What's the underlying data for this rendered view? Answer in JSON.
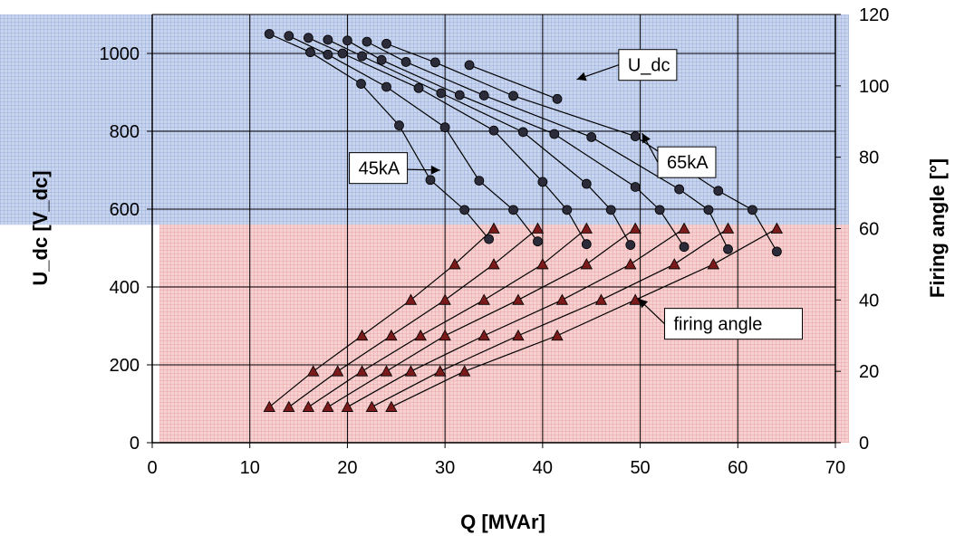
{
  "chart_data": {
    "type": "line",
    "x_axis": {
      "label": "Q [MVAr]",
      "ticks": [
        "0",
        "10",
        "20",
        "30",
        "40",
        "50",
        "60",
        "70"
      ],
      "range": [
        0,
        70
      ]
    },
    "y_axis_left": {
      "label": "U_dc [V_dc]",
      "ticks": [
        "0",
        "200",
        "400",
        "600",
        "800",
        "1000"
      ],
      "range": [
        0,
        1100
      ]
    },
    "y_axis_right": {
      "label": "Firing angle [°]",
      "ticks": [
        "0",
        "20",
        "40",
        "60",
        "80",
        "100",
        "120"
      ],
      "range": [
        0,
        120
      ]
    },
    "grid": true,
    "regions": [
      {
        "name": "upper",
        "color": "#b3c4e3",
        "y_from": 560,
        "y_to": 1100,
        "axis": "left"
      },
      {
        "name": "lower",
        "color": "#f2b9b9",
        "y_from": 0,
        "y_to": 560,
        "axis": "left"
      }
    ],
    "udc_series": [
      {
        "points": [
          [
            12.0,
            1050
          ],
          [
            16.2,
            1003
          ],
          [
            21.4,
            922
          ],
          [
            25.3,
            815
          ],
          [
            28.5,
            675
          ],
          [
            32.0,
            598
          ],
          [
            34.5,
            523
          ]
        ]
      },
      {
        "points": [
          [
            14.0,
            1045
          ],
          [
            18.0,
            997
          ],
          [
            24.0,
            914
          ],
          [
            30.0,
            810
          ],
          [
            33.5,
            673
          ],
          [
            37.0,
            598
          ],
          [
            39.5,
            517
          ]
        ]
      },
      {
        "points": [
          [
            16.0,
            1040
          ],
          [
            19.5,
            1000
          ],
          [
            27.3,
            911
          ],
          [
            35.0,
            802
          ],
          [
            40.0,
            670
          ],
          [
            42.5,
            598
          ],
          [
            44.5,
            510
          ]
        ]
      },
      {
        "points": [
          [
            18.0,
            1035
          ],
          [
            21.5,
            993
          ],
          [
            29.6,
            898
          ],
          [
            38.0,
            798
          ],
          [
            44.5,
            665
          ],
          [
            47.0,
            598
          ],
          [
            49.0,
            508
          ]
        ]
      },
      {
        "points": [
          [
            20.0,
            1033
          ],
          [
            23.5,
            983
          ],
          [
            31.5,
            893
          ],
          [
            41.2,
            793
          ],
          [
            49.5,
            657
          ],
          [
            52.0,
            598
          ],
          [
            54.5,
            503
          ]
        ]
      },
      {
        "points": [
          [
            22.0,
            1030
          ],
          [
            26.0,
            978
          ],
          [
            34.0,
            892
          ],
          [
            45.0,
            785
          ],
          [
            54.0,
            651
          ],
          [
            57.0,
            598
          ],
          [
            59.0,
            497
          ]
        ]
      },
      {
        "points": [
          [
            24.0,
            1025
          ],
          [
            29.0,
            977
          ],
          [
            37.0,
            891
          ],
          [
            49.5,
            787
          ],
          [
            58.0,
            647
          ],
          [
            61.5,
            598
          ],
          [
            64.0,
            491
          ]
        ]
      },
      {
        "points": [
          [
            32.5,
            970
          ],
          [
            41.5,
            883
          ]
        ]
      }
    ],
    "firing_series": [
      {
        "points": [
          [
            12.0,
            10
          ],
          [
            16.5,
            20
          ],
          [
            21.5,
            30
          ],
          [
            26.5,
            40
          ],
          [
            31.0,
            50
          ],
          [
            35.0,
            60
          ]
        ]
      },
      {
        "points": [
          [
            14.0,
            10
          ],
          [
            19.0,
            20
          ],
          [
            24.5,
            30
          ],
          [
            30.0,
            40
          ],
          [
            35.0,
            50
          ],
          [
            39.5,
            60
          ]
        ]
      },
      {
        "points": [
          [
            16.0,
            10
          ],
          [
            21.5,
            20
          ],
          [
            27.5,
            30
          ],
          [
            34.0,
            40
          ],
          [
            40.0,
            50
          ],
          [
            44.5,
            60
          ]
        ]
      },
      {
        "points": [
          [
            18.0,
            10
          ],
          [
            24.0,
            20
          ],
          [
            30.0,
            30
          ],
          [
            37.5,
            40
          ],
          [
            44.5,
            50
          ],
          [
            49.5,
            60
          ]
        ]
      },
      {
        "points": [
          [
            20.0,
            10
          ],
          [
            26.5,
            20
          ],
          [
            34.0,
            30
          ],
          [
            42.0,
            40
          ],
          [
            49.0,
            50
          ],
          [
            54.5,
            60
          ]
        ]
      },
      {
        "points": [
          [
            22.5,
            10
          ],
          [
            29.5,
            20
          ],
          [
            37.5,
            30
          ],
          [
            46.0,
            40
          ],
          [
            53.5,
            50
          ],
          [
            59.0,
            60
          ]
        ]
      },
      {
        "points": [
          [
            24.5,
            10
          ],
          [
            32.0,
            20
          ],
          [
            41.5,
            30
          ],
          [
            49.5,
            40
          ],
          [
            57.5,
            50
          ],
          [
            64.0,
            60
          ]
        ]
      }
    ],
    "annotations": [
      {
        "text": "U_dc",
        "box_at": [
          47.8,
          1010
        ],
        "arrow_to": [
          43.5,
          933
        ]
      },
      {
        "text": "65kA",
        "box_at": [
          51.8,
          760
        ],
        "arrow_to": [
          50.2,
          795
        ]
      },
      {
        "text": "45kA",
        "box_at": [
          20.2,
          745
        ],
        "arrow_to": [
          29.5,
          700
        ]
      },
      {
        "text": "firing angle",
        "box_at": [
          52.5,
          345
        ],
        "arrow_to": [
          49.8,
          370
        ]
      }
    ]
  }
}
